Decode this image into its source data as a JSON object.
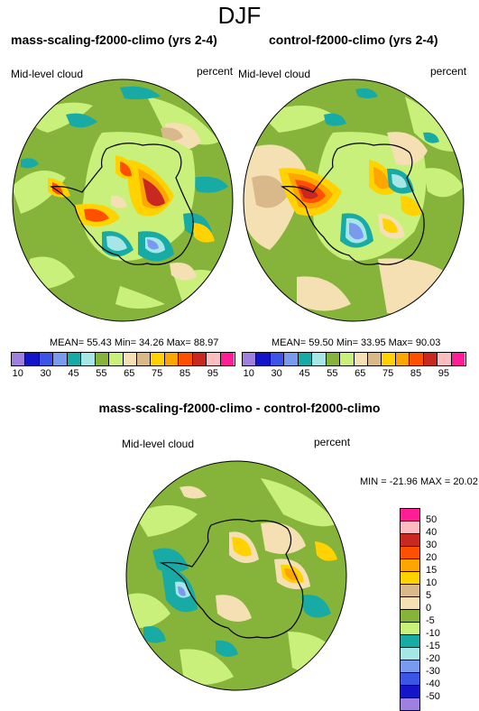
{
  "figure": {
    "season": "DJF"
  },
  "panels": [
    {
      "title": "mass-scaling-f2000-climo (yrs 2-4)",
      "variable": "Mid-level cloud",
      "units": "percent",
      "stats": "MEAN=  55.43  Min=  34.26  Max=  88.97"
    },
    {
      "title": "control-f2000-climo (yrs 2-4)",
      "variable": "Mid-level cloud",
      "units": "percent",
      "stats": "MEAN=  59.50  Min=  33.95  Max=  90.03"
    },
    {
      "title": "mass-scaling-f2000-climo - control-f2000-climo",
      "variable": "Mid-level cloud",
      "units": "percent",
      "stats": "MIN = -21.96 MAX =  20.02"
    }
  ],
  "colorbar_top": {
    "colors": [
      "#9f7fdf",
      "#1414c8",
      "#3c55e6",
      "#7a9af0",
      "#18aaa4",
      "#a6e6e6",
      "#86b43a",
      "#c8f07a",
      "#f5e0b4",
      "#d9b88a",
      "#ffd200",
      "#ffa500",
      "#ff5000",
      "#c82820",
      "#ffbcc0",
      "#ff1e96"
    ],
    "ticks": [
      "10",
      "30",
      "45",
      "55",
      "65",
      "75",
      "85",
      "95"
    ],
    "ticks_full": [
      "10",
      "30",
      "45",
      "55",
      "65",
      "75",
      "85",
      "95"
    ],
    "ticks_shown": [
      "10",
      "30",
      "45",
      "55",
      "65",
      "75",
      "85",
      "95"
    ]
  },
  "colorbar_top_labels": [
    "10",
    "30",
    "45",
    "55",
    "65",
    "75",
    "85",
    "95"
  ],
  "colorbar_diff": {
    "colors": [
      "#ff1e96",
      "#ffbcc0",
      "#c82820",
      "#ff5000",
      "#ffa500",
      "#ffd200",
      "#d9b88a",
      "#f5e0b4",
      "#86b43a",
      "#c8f07a",
      "#18aaa4",
      "#a6e6e6",
      "#7a9af0",
      "#3c55e6",
      "#1414c8",
      "#9f7fdf"
    ],
    "ticks": [
      "50",
      "40",
      "30",
      "20",
      "15",
      "10",
      "5",
      "0",
      "-5",
      "-10",
      "-15",
      "-20",
      "-30",
      "-40",
      "-50"
    ]
  },
  "map_palette": {
    "ocean_base": "#86b43a",
    "light_green": "#c8f07a",
    "tan": "#f5e0b4",
    "brown": "#d9b88a",
    "yellow": "#ffd200",
    "orange": "#ffa500",
    "red": "#ff5000",
    "dark_red": "#c82820",
    "teal": "#18aaa4",
    "light_cyan": "#a6e6e6",
    "blue": "#7a9af0"
  }
}
